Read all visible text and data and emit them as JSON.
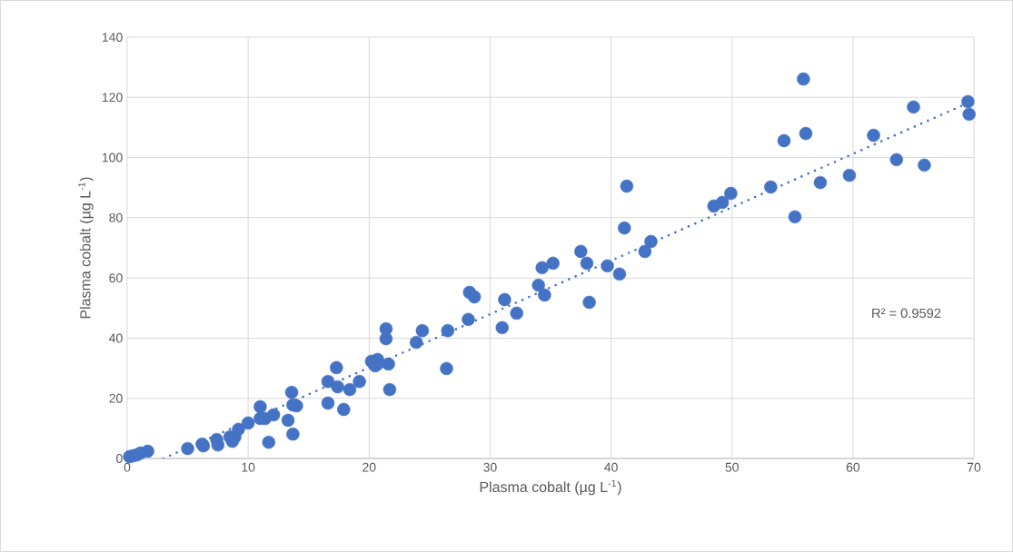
{
  "chart_data": {
    "type": "scatter",
    "xlabel": "Plasma cobalt (µg L$^{-1}$)",
    "ylabel": "Plasma cobalt (µg L$^{-1}$)",
    "xlim": [
      0,
      70
    ],
    "ylim": [
      0,
      140
    ],
    "xticks": [
      0,
      10,
      20,
      30,
      40,
      50,
      60,
      70
    ],
    "yticks": [
      0,
      20,
      40,
      60,
      80,
      100,
      120,
      140
    ],
    "grid": true,
    "annotations": [
      "R² = 0.9592"
    ],
    "series": [
      {
        "type": "scatter",
        "marker": "circle",
        "color": "#4472c4",
        "x": [
          0.2,
          0.5,
          0.8,
          1.1,
          1.7,
          5.0,
          6.2,
          6.3,
          7.4,
          7.5,
          8.5,
          8.7,
          8.9,
          9.2,
          10.0,
          11.0,
          11.0,
          11.4,
          11.7,
          12.1,
          13.3,
          13.6,
          13.7,
          14.0,
          13.7,
          16.6,
          16.6,
          17.3,
          17.4,
          17.9,
          18.4,
          19.2,
          20.2,
          20.5,
          20.7,
          20.7,
          21.4,
          21.4,
          21.6,
          21.7,
          23.9,
          24.4,
          26.4,
          26.5,
          28.2,
          28.3,
          28.7,
          31.2,
          31.0,
          32.2,
          34.0,
          34.3,
          34.5,
          35.2,
          37.5,
          38.0,
          38.2,
          39.7,
          40.7,
          41.1,
          41.3,
          42.8,
          43.3,
          48.5,
          49.2,
          49.9,
          53.2,
          54.3,
          55.2,
          55.9,
          56.1,
          57.3,
          59.7,
          61.7,
          63.6,
          65.0,
          65.9,
          69.5,
          69.6
        ],
        "values": [
          0.6,
          0.9,
          1.2,
          1.8,
          2.4,
          3.3,
          4.8,
          4.2,
          6.3,
          4.5,
          7.2,
          5.7,
          7.2,
          9.7,
          11.8,
          13.3,
          17.2,
          13.3,
          5.4,
          14.5,
          12.7,
          22.0,
          8.1,
          17.5,
          17.8,
          25.6,
          18.4,
          30.2,
          23.8,
          16.3,
          22.9,
          25.6,
          32.3,
          30.8,
          32.9,
          31.4,
          39.8,
          43.1,
          31.4,
          22.9,
          38.6,
          42.5,
          29.9,
          42.5,
          46.2,
          55.2,
          53.7,
          52.8,
          43.5,
          48.3,
          57.6,
          63.4,
          54.3,
          64.9,
          68.8,
          64.9,
          51.9,
          64.0,
          61.3,
          76.6,
          90.5,
          68.8,
          72.1,
          83.9,
          85.1,
          88.1,
          90.2,
          105.6,
          80.3,
          126.1,
          108.0,
          91.7,
          94.1,
          107.4,
          99.3,
          116.8,
          97.5,
          118.6,
          114.4
        ]
      },
      {
        "type": "line",
        "color": "#4472c4",
        "line_style": "dotted",
        "marker": "none",
        "x": [
          3,
          70
        ],
        "values": [
          0,
          119
        ]
      }
    ]
  }
}
